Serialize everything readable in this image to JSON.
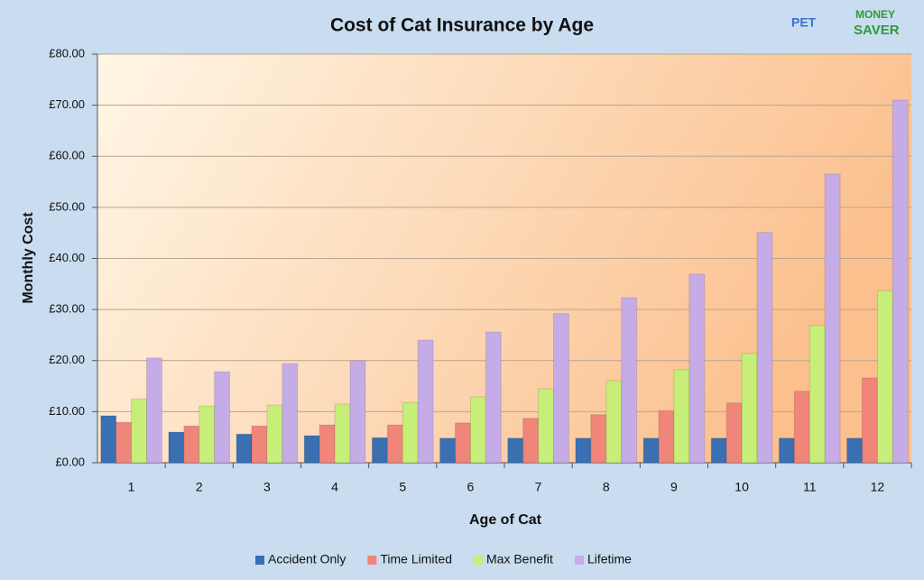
{
  "logo": {
    "word": "PET",
    "line1": "MONEY",
    "line2": "SAVER"
  },
  "chart_data": {
    "type": "bar",
    "title": "Cost of Cat Insurance by Age",
    "x_label": "Age of Cat",
    "y_label": "Monthly Cost",
    "categories": [
      "1",
      "2",
      "3",
      "4",
      "5",
      "6",
      "7",
      "8",
      "9",
      "10",
      "11",
      "12"
    ],
    "series": [
      {
        "name": "Accident Only",
        "color": "#3a6fb2",
        "values": [
          9.2,
          6.0,
          5.6,
          5.3,
          4.9,
          4.8,
          4.8,
          4.8,
          4.8,
          4.8,
          4.8,
          4.8
        ]
      },
      {
        "name": "Time Limited",
        "color": "#f0857a",
        "values": [
          7.9,
          7.2,
          7.2,
          7.4,
          7.4,
          7.8,
          8.7,
          9.4,
          10.2,
          11.7,
          14.0,
          16.6
        ]
      },
      {
        "name": "Max Benefit",
        "color": "#c6ee78",
        "values": [
          12.5,
          11.1,
          11.3,
          11.5,
          11.8,
          12.9,
          14.5,
          16.1,
          18.2,
          21.4,
          26.9,
          33.7
        ]
      },
      {
        "name": "Lifetime",
        "color": "#c6ace6",
        "values": [
          20.5,
          17.8,
          19.4,
          20.0,
          24.0,
          25.6,
          29.2,
          32.3,
          36.9,
          45.1,
          56.5,
          71.0
        ]
      }
    ],
    "ylim": [
      0,
      80
    ],
    "yticks": [
      {
        "value": 0,
        "label": "£0.00"
      },
      {
        "value": 10,
        "label": "£10.00"
      },
      {
        "value": 20,
        "label": "£20.00"
      },
      {
        "value": 30,
        "label": "£30.00"
      },
      {
        "value": 40,
        "label": "£40.00"
      },
      {
        "value": 50,
        "label": "£50.00"
      },
      {
        "value": 60,
        "label": "£60.00"
      },
      {
        "value": 70,
        "label": "£70.00"
      },
      {
        "value": 80,
        "label": "£80.00"
      }
    ],
    "grid": true,
    "legend": "bottom"
  }
}
